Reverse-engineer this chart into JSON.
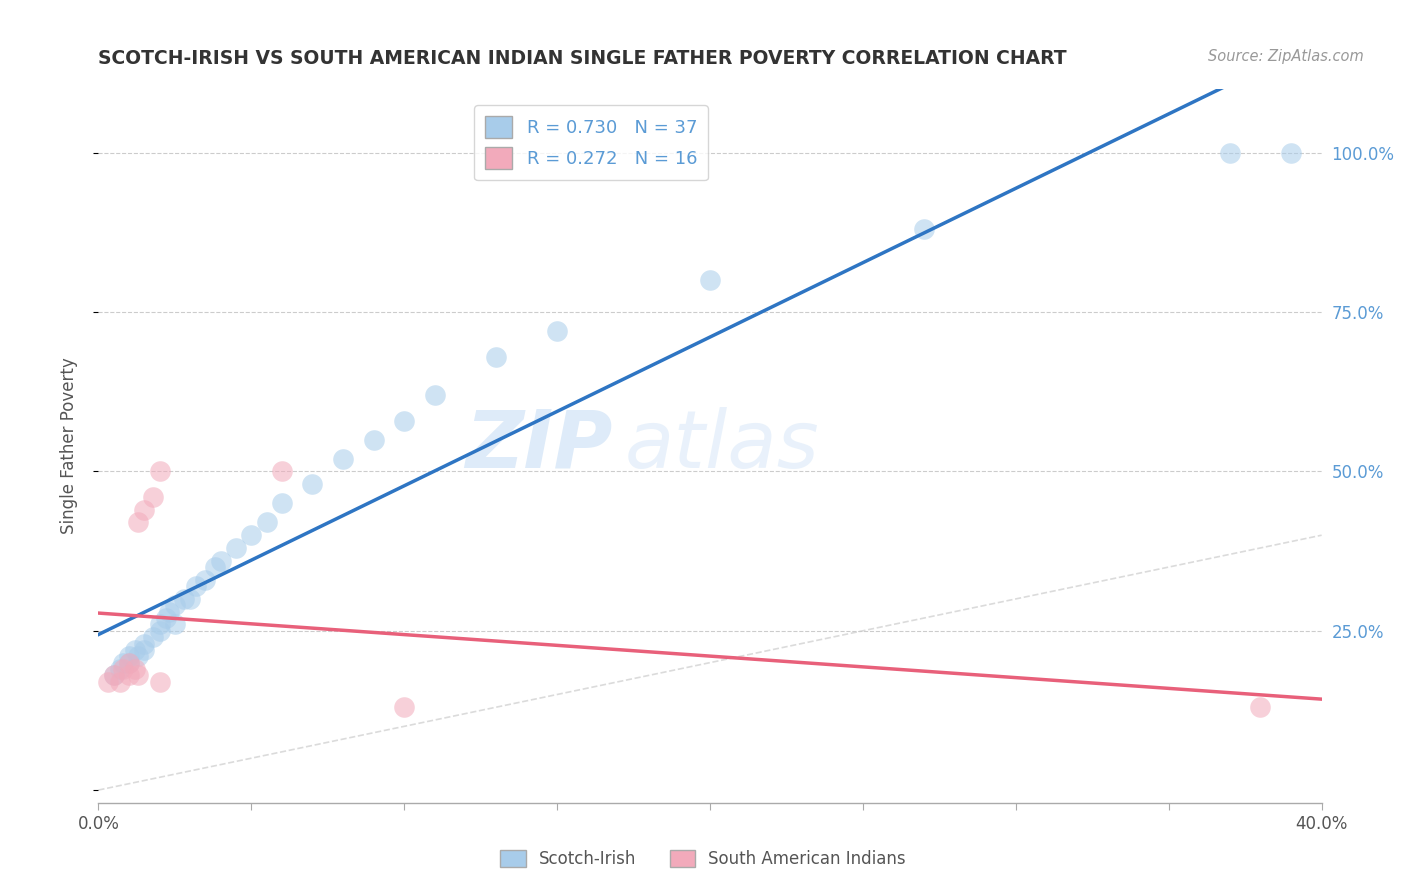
{
  "title": "SCOTCH-IRISH VS SOUTH AMERICAN INDIAN SINGLE FATHER POVERTY CORRELATION CHART",
  "source": "Source: ZipAtlas.com",
  "ylabel": "Single Father Poverty",
  "xlim": [
    0.0,
    0.4
  ],
  "ylim": [
    -0.02,
    1.1
  ],
  "blue_R": "0.730",
  "blue_N": "37",
  "pink_R": "0.272",
  "pink_N": "16",
  "blue_color": "#A8CCEA",
  "pink_color": "#F2AABB",
  "blue_line_color": "#2E75C3",
  "pink_line_color": "#E8607A",
  "diag_color": "#CCCCCC",
  "watermark_zip": "ZIP",
  "watermark_atlas": "atlas",
  "blue_points_x": [
    0.005,
    0.007,
    0.008,
    0.01,
    0.01,
    0.012,
    0.013,
    0.015,
    0.015,
    0.018,
    0.02,
    0.02,
    0.022,
    0.023,
    0.025,
    0.025,
    0.028,
    0.03,
    0.032,
    0.035,
    0.038,
    0.04,
    0.045,
    0.05,
    0.055,
    0.06,
    0.07,
    0.08,
    0.09,
    0.1,
    0.11,
    0.13,
    0.15,
    0.2,
    0.27,
    0.37,
    0.39
  ],
  "blue_points_y": [
    0.18,
    0.19,
    0.2,
    0.2,
    0.21,
    0.22,
    0.21,
    0.22,
    0.23,
    0.24,
    0.25,
    0.26,
    0.27,
    0.28,
    0.26,
    0.29,
    0.3,
    0.3,
    0.32,
    0.33,
    0.35,
    0.36,
    0.38,
    0.4,
    0.42,
    0.45,
    0.48,
    0.52,
    0.55,
    0.58,
    0.62,
    0.68,
    0.72,
    0.8,
    0.88,
    1.0,
    1.0
  ],
  "pink_points_x": [
    0.003,
    0.005,
    0.007,
    0.008,
    0.01,
    0.01,
    0.012,
    0.013,
    0.013,
    0.015,
    0.018,
    0.02,
    0.02,
    0.06,
    0.1,
    0.38
  ],
  "pink_points_y": [
    0.17,
    0.18,
    0.17,
    0.19,
    0.18,
    0.2,
    0.19,
    0.18,
    0.42,
    0.44,
    0.46,
    0.17,
    0.5,
    0.5,
    0.13,
    0.13
  ],
  "background_color": "#FFFFFF",
  "grid_color": "#CCCCCC",
  "title_color": "#333333",
  "right_label_color": "#5B9BD5",
  "axis_label_color": "#555555",
  "legend_text_color": "#5B9BD5",
  "ytick_positions": [
    0.0,
    0.25,
    0.5,
    0.75,
    1.0
  ],
  "ytick_right_labels": [
    "",
    "25.0%",
    "50.0%",
    "75.0%",
    "100.0%"
  ],
  "xtick_positions": [
    0.0,
    0.05,
    0.1,
    0.15,
    0.2,
    0.25,
    0.3,
    0.35,
    0.4
  ],
  "xtick_left_label": "0.0%",
  "xtick_right_label": "40.0%"
}
